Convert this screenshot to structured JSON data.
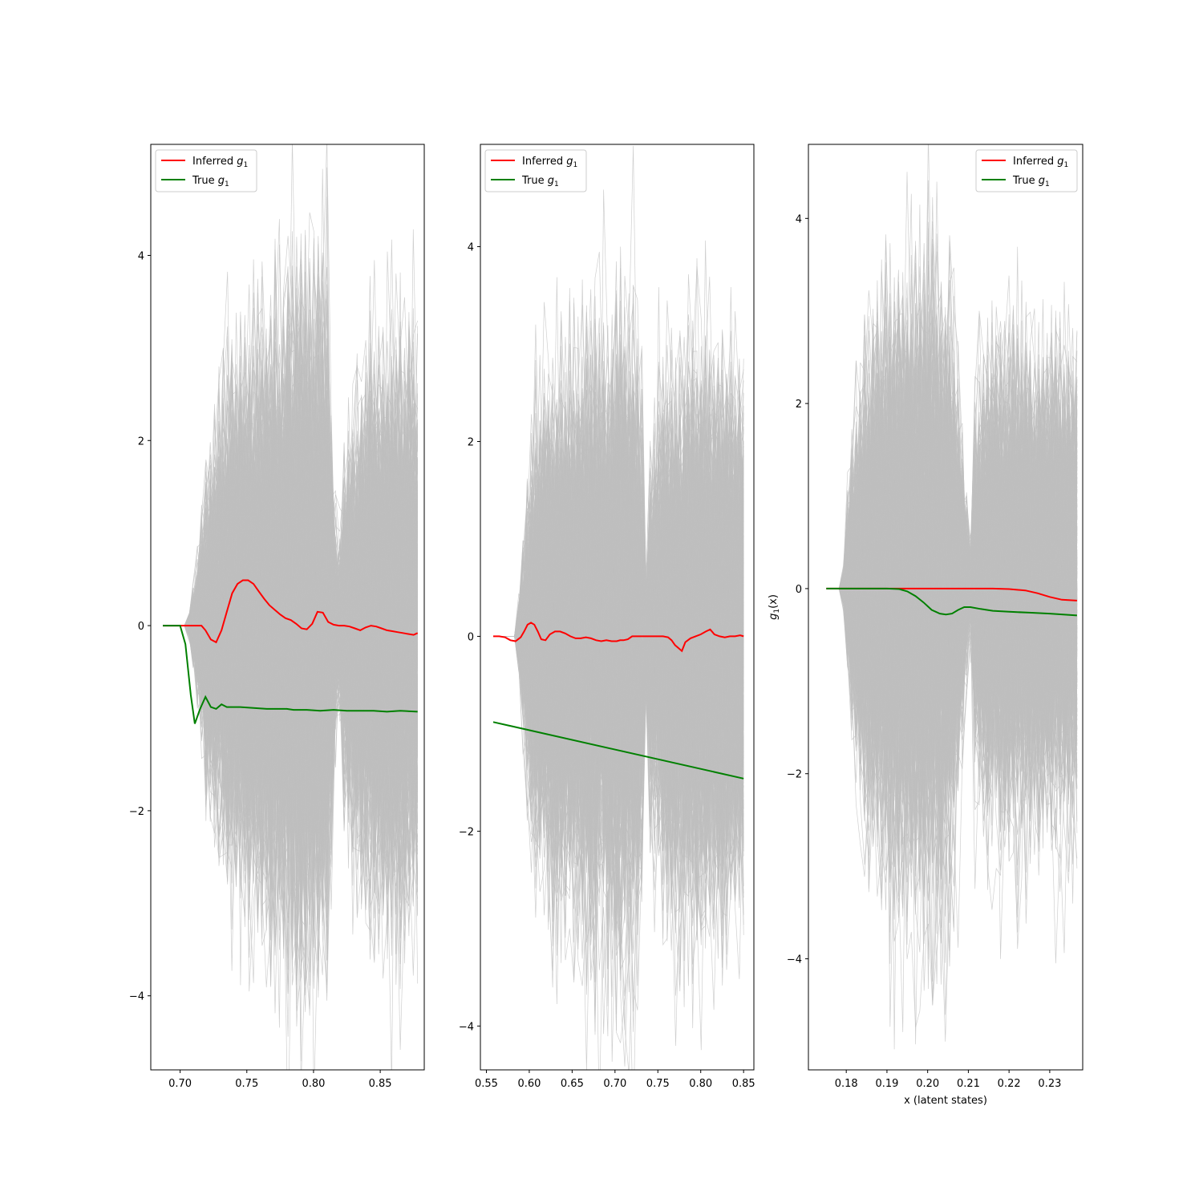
{
  "colors": {
    "inferred": "#ff0000",
    "true": "#008000",
    "samples": "#bfbfbf",
    "frame": "#000000",
    "background": "#ffffff"
  },
  "chart_data": [
    {
      "type": "line",
      "xlim": [
        0.678,
        0.883
      ],
      "ylim": [
        -4.8,
        5.2
      ],
      "xticks": [
        0.7,
        0.75,
        0.8,
        0.85
      ],
      "xtick_labels": [
        "0.70",
        "0.75",
        "0.80",
        "0.85"
      ],
      "yticks": [
        -4,
        -2,
        0,
        2,
        4
      ],
      "ytick_labels": [
        "−4",
        "−2",
        "0",
        "2",
        "4"
      ],
      "xlabel": "",
      "ylabel": "",
      "grid": false,
      "legend": {
        "loc": "upper left",
        "entries": [
          {
            "text": "Inferred g",
            "sub": "1",
            "series": "inferred"
          },
          {
            "text": "True g",
            "sub": "1",
            "series": "true"
          }
        ]
      },
      "samples": {
        "description_count": 400,
        "x_range": [
          0.687,
          0.878
        ],
        "spread_profile": [
          [
            0.687,
            0.0
          ],
          [
            0.705,
            0.0
          ],
          [
            0.712,
            0.3
          ],
          [
            0.72,
            0.9
          ],
          [
            0.735,
            1.3
          ],
          [
            0.75,
            1.5
          ],
          [
            0.77,
            1.7
          ],
          [
            0.79,
            2.0
          ],
          [
            0.81,
            1.9
          ],
          [
            0.818,
            0.2
          ],
          [
            0.822,
            0.9
          ],
          [
            0.84,
            1.5
          ],
          [
            0.86,
            1.6
          ],
          [
            0.878,
            1.5
          ]
        ]
      },
      "series": [
        {
          "name": "Inferred g1",
          "key": "inferred",
          "x": [
            0.687,
            0.7,
            0.71,
            0.716,
            0.719,
            0.723,
            0.727,
            0.731,
            0.735,
            0.739,
            0.743,
            0.747,
            0.751,
            0.755,
            0.759,
            0.763,
            0.767,
            0.771,
            0.775,
            0.779,
            0.783,
            0.787,
            0.791,
            0.795,
            0.799,
            0.803,
            0.807,
            0.811,
            0.815,
            0.819,
            0.823,
            0.827,
            0.831,
            0.835,
            0.839,
            0.843,
            0.847,
            0.851,
            0.855,
            0.859,
            0.863,
            0.867,
            0.871,
            0.875,
            0.878
          ],
          "y": [
            0.0,
            0.0,
            0.0,
            0.0,
            -0.05,
            -0.15,
            -0.18,
            -0.05,
            0.15,
            0.35,
            0.45,
            0.49,
            0.49,
            0.45,
            0.37,
            0.29,
            0.22,
            0.17,
            0.12,
            0.08,
            0.06,
            0.02,
            -0.03,
            -0.04,
            0.02,
            0.15,
            0.14,
            0.04,
            0.01,
            0.0,
            0.0,
            -0.01,
            -0.03,
            -0.05,
            -0.02,
            0.0,
            -0.01,
            -0.03,
            -0.05,
            -0.06,
            -0.07,
            -0.08,
            -0.09,
            -0.1,
            -0.08
          ]
        },
        {
          "name": "True g1",
          "key": "true",
          "x": [
            0.687,
            0.7,
            0.704,
            0.708,
            0.711,
            0.715,
            0.719,
            0.723,
            0.727,
            0.731,
            0.735,
            0.739,
            0.745,
            0.755,
            0.765,
            0.775,
            0.78,
            0.785,
            0.795,
            0.805,
            0.815,
            0.825,
            0.835,
            0.845,
            0.855,
            0.865,
            0.878
          ],
          "y": [
            0.0,
            0.0,
            -0.2,
            -0.75,
            -1.06,
            -0.9,
            -0.77,
            -0.88,
            -0.9,
            -0.85,
            -0.88,
            -0.88,
            -0.88,
            -0.89,
            -0.9,
            -0.9,
            -0.9,
            -0.91,
            -0.91,
            -0.92,
            -0.91,
            -0.92,
            -0.92,
            -0.92,
            -0.93,
            -0.92,
            -0.93
          ]
        }
      ]
    },
    {
      "type": "line",
      "xlim": [
        0.543,
        0.862
      ],
      "ylim": [
        -4.45,
        5.05
      ],
      "xticks": [
        0.55,
        0.6,
        0.65,
        0.7,
        0.75,
        0.8,
        0.85
      ],
      "xtick_labels": [
        "0.55",
        "0.60",
        "0.65",
        "0.70",
        "0.75",
        "0.80",
        "0.85"
      ],
      "yticks": [
        -4,
        -2,
        0,
        2,
        4
      ],
      "ytick_labels": [
        "−4",
        "−2",
        "0",
        "2",
        "4"
      ],
      "xlabel": "",
      "ylabel": "",
      "grid": false,
      "legend": {
        "loc": "upper left",
        "entries": [
          {
            "text": "Inferred g",
            "sub": "1",
            "series": "inferred"
          },
          {
            "text": "True g",
            "sub": "1",
            "series": "true"
          }
        ]
      },
      "samples": {
        "description_count": 400,
        "x_range": [
          0.558,
          0.85
        ],
        "spread_profile": [
          [
            0.558,
            0.0
          ],
          [
            0.585,
            0.0
          ],
          [
            0.595,
            0.6
          ],
          [
            0.605,
            1.1
          ],
          [
            0.625,
            1.3
          ],
          [
            0.65,
            1.4
          ],
          [
            0.68,
            1.6
          ],
          [
            0.71,
            1.7
          ],
          [
            0.73,
            1.5
          ],
          [
            0.735,
            0.1
          ],
          [
            0.74,
            0.9
          ],
          [
            0.76,
            1.3
          ],
          [
            0.79,
            1.5
          ],
          [
            0.82,
            1.4
          ],
          [
            0.85,
            1.3
          ]
        ]
      },
      "series": [
        {
          "name": "Inferred g1",
          "key": "inferred",
          "x": [
            0.558,
            0.565,
            0.572,
            0.578,
            0.584,
            0.59,
            0.594,
            0.598,
            0.602,
            0.606,
            0.61,
            0.614,
            0.619,
            0.624,
            0.63,
            0.636,
            0.642,
            0.648,
            0.654,
            0.66,
            0.666,
            0.672,
            0.678,
            0.684,
            0.69,
            0.696,
            0.702,
            0.706,
            0.71,
            0.715,
            0.72,
            0.726,
            0.732,
            0.738,
            0.744,
            0.75,
            0.756,
            0.762,
            0.766,
            0.77,
            0.774,
            0.778,
            0.782,
            0.788,
            0.794,
            0.8,
            0.806,
            0.811,
            0.816,
            0.822,
            0.828,
            0.834,
            0.84,
            0.846,
            0.85
          ],
          "y": [
            0.0,
            0.0,
            -0.01,
            -0.04,
            -0.05,
            -0.01,
            0.05,
            0.12,
            0.14,
            0.12,
            0.05,
            -0.03,
            -0.04,
            0.02,
            0.05,
            0.05,
            0.03,
            0.0,
            -0.02,
            -0.02,
            -0.01,
            -0.02,
            -0.04,
            -0.05,
            -0.04,
            -0.05,
            -0.05,
            -0.04,
            -0.04,
            -0.03,
            0.0,
            0.0,
            0.0,
            0.0,
            0.0,
            0.0,
            0.0,
            -0.01,
            -0.04,
            -0.09,
            -0.12,
            -0.15,
            -0.06,
            -0.02,
            0.0,
            0.02,
            0.05,
            0.07,
            0.02,
            0.0,
            -0.01,
            0.0,
            0.0,
            0.01,
            0.0
          ]
        },
        {
          "name": "True g1",
          "key": "true",
          "x": [
            0.558,
            0.85
          ],
          "y": [
            -0.88,
            -1.46
          ]
        }
      ]
    },
    {
      "type": "line",
      "xlim": [
        0.1707,
        0.2381
      ],
      "ylim": [
        -5.2,
        4.8
      ],
      "xticks": [
        0.18,
        0.19,
        0.2,
        0.21,
        0.22,
        0.23
      ],
      "xtick_labels": [
        "0.18",
        "0.19",
        "0.20",
        "0.21",
        "0.22",
        "0.23"
      ],
      "yticks": [
        -4,
        -2,
        0,
        2,
        4
      ],
      "ytick_labels": [
        "−4",
        "−2",
        "0",
        "2",
        "4"
      ],
      "xlabel": "x (latent states)",
      "ylabel": "g",
      "ylabel_sub": "1",
      "ylabel_suffix": "(x)",
      "grid": false,
      "legend": {
        "loc": "upper right",
        "entries": [
          {
            "text": "Inferred g",
            "sub": "1",
            "series": "inferred"
          },
          {
            "text": "True g",
            "sub": "1",
            "series": "true"
          }
        ]
      },
      "samples": {
        "description_count": 400,
        "x_range": [
          0.1751,
          0.2367
        ],
        "spread_profile": [
          [
            0.1751,
            0.0
          ],
          [
            0.179,
            0.0
          ],
          [
            0.181,
            0.7
          ],
          [
            0.183,
            1.1
          ],
          [
            0.186,
            1.4
          ],
          [
            0.19,
            1.6
          ],
          [
            0.195,
            1.7
          ],
          [
            0.2,
            1.8
          ],
          [
            0.206,
            1.6
          ],
          [
            0.2105,
            0.2
          ],
          [
            0.2115,
            1.0
          ],
          [
            0.215,
            1.3
          ],
          [
            0.22,
            1.4
          ],
          [
            0.23,
            1.3
          ],
          [
            0.2367,
            1.3
          ]
        ]
      },
      "series": [
        {
          "name": "Inferred g1",
          "key": "inferred",
          "x": [
            0.1751,
            0.19,
            0.2,
            0.21,
            0.216,
            0.22,
            0.224,
            0.227,
            0.23,
            0.233,
            0.2367
          ],
          "y": [
            0.0,
            0.0,
            0.0,
            0.0,
            0.0,
            -0.005,
            -0.02,
            -0.05,
            -0.09,
            -0.12,
            -0.13
          ]
        },
        {
          "name": "True g1",
          "key": "true",
          "x": [
            0.1751,
            0.19,
            0.193,
            0.195,
            0.197,
            0.199,
            0.201,
            0.203,
            0.2045,
            0.206,
            0.2075,
            0.209,
            0.2105,
            0.213,
            0.216,
            0.22,
            0.225,
            0.23,
            0.2367
          ],
          "y": [
            0.0,
            0.0,
            -0.005,
            -0.03,
            -0.08,
            -0.15,
            -0.23,
            -0.27,
            -0.28,
            -0.27,
            -0.23,
            -0.2,
            -0.2,
            -0.22,
            -0.24,
            -0.25,
            -0.26,
            -0.27,
            -0.29
          ]
        }
      ]
    }
  ]
}
